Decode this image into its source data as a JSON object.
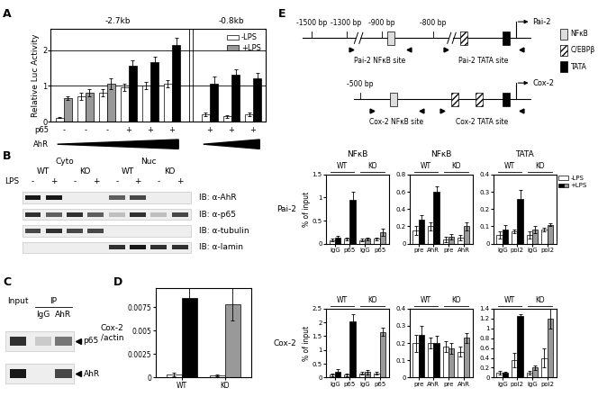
{
  "panel_labels": [
    "A",
    "B",
    "C",
    "D",
    "E"
  ],
  "chart_data": [
    {
      "type": "bar",
      "ylabel": "Relative Luc Activity",
      "groups": [
        {
          "label": "-2.7kb",
          "p65": [
            "-",
            "-",
            "-",
            "+",
            "+",
            "+"
          ]
        },
        {
          "label": "-0.8kb",
          "p65": [
            "+",
            "+",
            "+"
          ]
        }
      ],
      "row_labels": [
        "p65",
        "AhR"
      ],
      "series": [
        {
          "name": "-LPS",
          "color": "#ffffff",
          "values": [
            0.12,
            0.7,
            0.8,
            0.95,
            1.0,
            1.05,
            0.2,
            0.15,
            0.2
          ],
          "errors": [
            0.02,
            0.1,
            0.1,
            0.1,
            0.1,
            0.1,
            0.05,
            0.03,
            0.05
          ]
        },
        {
          "name": "+LPS",
          "color": "#999999",
          "colors": [
            "#999999",
            "#999999",
            "#999999",
            "#000000",
            "#000000",
            "#000000",
            "#000000",
            "#000000",
            "#000000"
          ],
          "values": [
            0.65,
            0.8,
            1.05,
            1.55,
            1.65,
            2.15,
            1.05,
            1.3,
            1.2
          ],
          "errors": [
            0.05,
            0.1,
            0.15,
            0.15,
            0.15,
            0.2,
            0.2,
            0.15,
            0.15
          ]
        }
      ],
      "ylim": [
        0,
        2.6
      ],
      "yticks": [
        0,
        1,
        2
      ],
      "grid": true,
      "legend": "upper right",
      "tick_labels": "y"
    },
    {
      "type": "bar",
      "ylabel": "Cox-2\n/actin",
      "categories": [
        "WT",
        "KO"
      ],
      "series": [
        {
          "name": "-LPS",
          "color": "#ffffff",
          "values": [
            0.0003,
            0.0002
          ],
          "errors": [
            0.0002,
            0.0001
          ]
        },
        {
          "name": "+LPS",
          "colors": [
            "#000000",
            "#999999"
          ],
          "values": [
            0.0085,
            0.0078
          ],
          "errors": [
            0.0011,
            0.0017
          ]
        }
      ],
      "ylim": [
        0,
        0.0095
      ],
      "yticks": [
        0,
        0.0025,
        0.005,
        0.0075
      ]
    },
    {
      "type": "bar",
      "title": "NFκB",
      "row_label": "Pai-2",
      "ylabel": "% of input",
      "groups": [
        "WT",
        "KO"
      ],
      "categories": [
        "IgG",
        "p65",
        "IgG",
        "p65"
      ],
      "series": [
        {
          "name": "-LPS",
          "color": "#ffffff",
          "values": [
            0.08,
            0.1,
            0.08,
            0.1
          ],
          "errors": [
            0.03,
            0.03,
            0.02,
            0.03
          ]
        },
        {
          "name": "+LPS",
          "colors": [
            "#000000",
            "#000000",
            "#999999",
            "#999999"
          ],
          "values": [
            0.12,
            0.95,
            0.1,
            0.25
          ],
          "errors": [
            0.05,
            0.18,
            0.03,
            0.08
          ]
        }
      ],
      "ylim": [
        0,
        1.5
      ],
      "yticks": [
        0,
        0.5,
        1,
        1.5
      ]
    },
    {
      "type": "bar",
      "title": "NFκB",
      "groups": [
        "WT",
        "KO"
      ],
      "categories": [
        "pre",
        "AhR",
        "pre",
        "AhR"
      ],
      "series": [
        {
          "name": "-LPS",
          "color": "#ffffff",
          "values": [
            0.15,
            0.2,
            0.05,
            0.07
          ],
          "errors": [
            0.05,
            0.05,
            0.03,
            0.03
          ]
        },
        {
          "name": "+LPS",
          "colors": [
            "#000000",
            "#000000",
            "#999999",
            "#999999"
          ],
          "values": [
            0.28,
            0.6,
            0.08,
            0.2
          ],
          "errors": [
            0.05,
            0.06,
            0.03,
            0.05
          ]
        }
      ],
      "ylim": [
        0,
        0.8
      ],
      "yticks": [
        0,
        0.2,
        0.4,
        0.6,
        0.8
      ]
    },
    {
      "type": "bar",
      "title": "TATA",
      "groups": [
        "WT",
        "KO"
      ],
      "categories": [
        "IgG",
        "pol2",
        "IgG",
        "pol2"
      ],
      "series": [
        {
          "name": "-LPS",
          "color": "#ffffff",
          "values": [
            0.05,
            0.07,
            0.05,
            0.08
          ],
          "errors": [
            0.02,
            0.01,
            0.02,
            0.01
          ]
        },
        {
          "name": "+LPS",
          "colors": [
            "#000000",
            "#000000",
            "#999999",
            "#999999"
          ],
          "values": [
            0.08,
            0.26,
            0.08,
            0.11
          ],
          "errors": [
            0.03,
            0.05,
            0.02,
            0.01
          ]
        }
      ],
      "ylim": [
        0,
        0.4
      ],
      "yticks": [
        0,
        0.1,
        0.2,
        0.3,
        0.4
      ],
      "legend": "right"
    },
    {
      "type": "bar",
      "row_label": "Cox-2",
      "ylabel": "% of input",
      "groups": [
        "WT",
        "KO"
      ],
      "categories": [
        "IgG",
        "p65",
        "IgG",
        "p65"
      ],
      "series": [
        {
          "name": "-LPS",
          "color": "#ffffff",
          "values": [
            0.1,
            0.1,
            0.15,
            0.15
          ],
          "errors": [
            0.05,
            0.05,
            0.05,
            0.05
          ]
        },
        {
          "name": "+LPS",
          "colors": [
            "#000000",
            "#000000",
            "#999999",
            "#999999"
          ],
          "values": [
            0.2,
            2.05,
            0.2,
            1.65
          ],
          "errors": [
            0.1,
            0.25,
            0.08,
            0.15
          ]
        }
      ],
      "ylim": [
        0,
        2.5
      ],
      "yticks": [
        0,
        0.5,
        1,
        1.5,
        2,
        2.5
      ]
    },
    {
      "type": "bar",
      "groups": [
        "WT",
        "KO"
      ],
      "categories": [
        "pre",
        "AhR",
        "pre",
        "AhR"
      ],
      "series": [
        {
          "name": "-LPS",
          "color": "#ffffff",
          "values": [
            0.2,
            0.2,
            0.18,
            0.15
          ],
          "errors": [
            0.05,
            0.03,
            0.03,
            0.03
          ]
        },
        {
          "name": "+LPS",
          "colors": [
            "#000000",
            "#000000",
            "#999999",
            "#999999"
          ],
          "values": [
            0.25,
            0.2,
            0.17,
            0.23
          ],
          "errors": [
            0.05,
            0.04,
            0.03,
            0.03
          ]
        }
      ],
      "ylim": [
        0,
        0.4
      ],
      "yticks": [
        0,
        0.1,
        0.2,
        0.3,
        0.4
      ]
    },
    {
      "type": "bar",
      "groups": [
        "WT",
        "KO"
      ],
      "categories": [
        "IgG",
        "pol2",
        "IgG",
        "pol2"
      ],
      "series": [
        {
          "name": "-LPS",
          "color": "#ffffff",
          "values": [
            0.1,
            0.35,
            0.1,
            0.4
          ],
          "errors": [
            0.03,
            0.15,
            0.03,
            0.2
          ]
        },
        {
          "name": "+LPS",
          "colors": [
            "#000000",
            "#000000",
            "#999999",
            "#999999"
          ],
          "values": [
            0.1,
            1.25,
            0.2,
            1.2
          ],
          "errors": [
            0.02,
            0.03,
            0.05,
            0.2
          ]
        }
      ],
      "ylim": [
        0,
        1.4
      ],
      "yticks": [
        0,
        0.2,
        0.4,
        0.6,
        0.8,
        1,
        1.2,
        1.4
      ]
    }
  ],
  "blot_B": {
    "fractions": [
      "Cyto",
      "Nuc"
    ],
    "genotypes": [
      "WT",
      "KO"
    ],
    "lps_label": "LPS",
    "lps": [
      "-",
      "+"
    ],
    "rows": [
      {
        "label": "IB: α-AhR",
        "bands": [
          0.9,
          0.9,
          0.0,
          0.0,
          0.6,
          0.7,
          0.0,
          0.0
        ]
      },
      {
        "label": "IB: α-p65",
        "bands": [
          0.8,
          0.6,
          0.8,
          0.6,
          0.2,
          0.8,
          0.2,
          0.7
        ]
      },
      {
        "label": "IB: α-tubulin",
        "bands": [
          0.7,
          0.8,
          0.7,
          0.7,
          0.0,
          0.0,
          0.0,
          0.0
        ]
      },
      {
        "label": "IB: α-lamin",
        "bands": [
          0.0,
          0.0,
          0.0,
          0.0,
          0.8,
          0.9,
          0.8,
          0.8
        ]
      }
    ]
  },
  "blot_C": {
    "lanes": [
      "Input",
      "IgG",
      "AhR"
    ],
    "ip_label": "IP",
    "rows": [
      {
        "label": "p65",
        "bands": [
          0.8,
          0.15,
          0.5
        ]
      },
      {
        "label": "AhR",
        "bands": [
          0.9,
          0.0,
          0.7
        ]
      }
    ]
  },
  "diagram_E": {
    "promoters": [
      {
        "name": "Pai-2",
        "positions": [
          "-1500 bp",
          "-1300 bp",
          "-900 bp",
          "-800 bp"
        ],
        "sites": [
          "NFκB",
          "C/EBPβ",
          "TATA"
        ],
        "primers": [
          "Pai-2 NFκB site",
          "Pai-2 TATA site"
        ]
      },
      {
        "name": "Cox-2",
        "positions": [
          "-500 bp"
        ],
        "sites": [
          "NFκB",
          "C/EBPβ",
          "C/EBPβ",
          "TATA"
        ],
        "primers": [
          "Cox-2 NFκB site",
          "Cox-2 TATA site"
        ]
      }
    ],
    "site_types": [
      {
        "name": "NFκB",
        "style": "light"
      },
      {
        "name": "C/EBPβ",
        "style": "hatched"
      },
      {
        "name": "TATA",
        "style": "solid"
      }
    ]
  }
}
